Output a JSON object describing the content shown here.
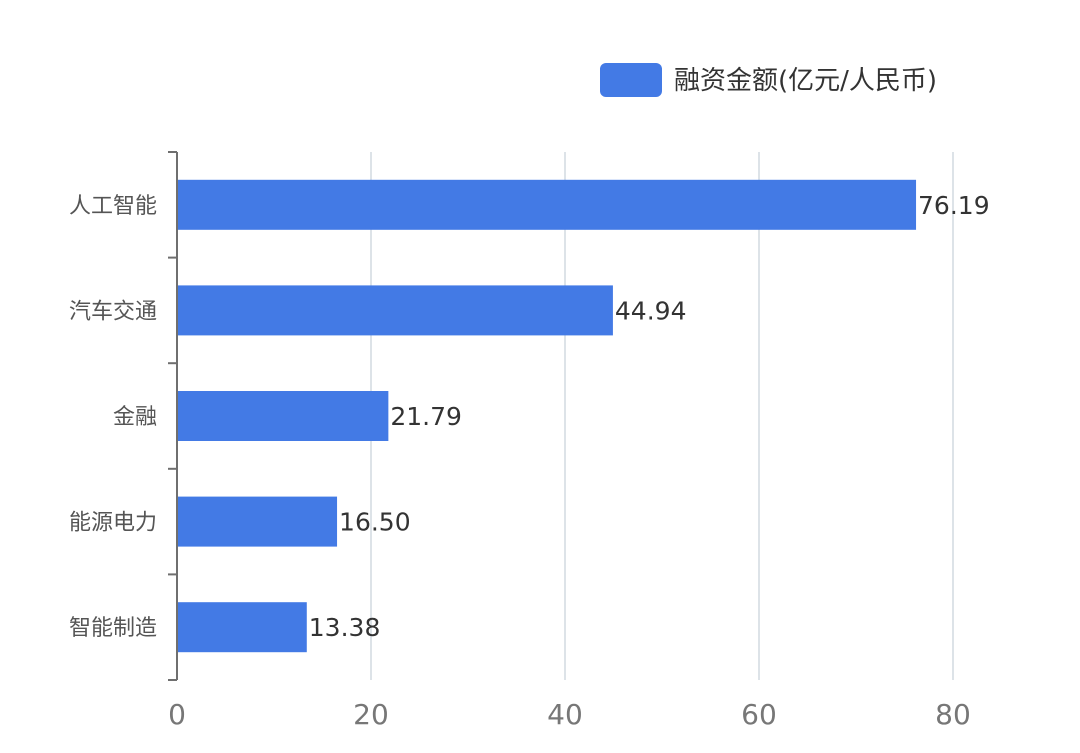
{
  "chart_data": {
    "type": "bar",
    "orientation": "horizontal",
    "categories": [
      "人工智能",
      "汽车交通",
      "金融",
      "能源电力",
      "智能制造"
    ],
    "series": [
      {
        "name": "融资金额(亿元/人民币)",
        "values": [
          76.19,
          44.94,
          21.79,
          16.5,
          13.38
        ],
        "value_labels": [
          "76.19",
          "44.94",
          "21.79",
          "16.50",
          "13.38"
        ],
        "color": "#437ae5"
      }
    ],
    "xlim": [
      0,
      80
    ],
    "x_ticks": [
      "0",
      "20",
      "40",
      "60",
      "80"
    ],
    "grid": "vertical",
    "legend": "top-right"
  },
  "colors": {
    "bar": "#437ae5",
    "grid": "#dde3e8",
    "axis": "#6f6f6f"
  }
}
